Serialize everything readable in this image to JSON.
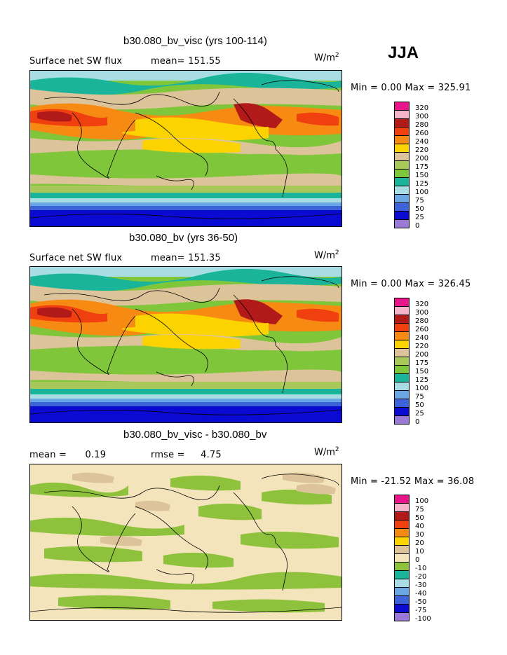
{
  "season": "JJA",
  "panels": [
    {
      "title": "b30.080_bv_visc (yrs 100-114)",
      "left_label": "Surface net SW flux",
      "stat_label": "mean=",
      "stat_value": "151.55",
      "extra_label": "",
      "extra_value": "",
      "unit_base": "W/m",
      "unit_exp": "2",
      "minmax": "Min =    0.00 Max = 325.91",
      "contour_levels": [
        "320",
        "300",
        "280",
        "260",
        "240",
        "220",
        "200",
        "175",
        "150",
        "125",
        "100",
        "75",
        "50",
        "25",
        "0"
      ],
      "colors": [
        "#e8158c",
        "#f6b4c8",
        "#b21a1a",
        "#f04010",
        "#f78a12",
        "#fbd300",
        "#dcc39a",
        "#a8c85a",
        "#7fc63b",
        "#1ab49a",
        "#a9dde6",
        "#6aa6e4",
        "#3c64d8",
        "#0a0ad2",
        "#9a7ad6"
      ]
    },
    {
      "title": "b30.080_bv (yrs 36-50)",
      "left_label": "Surface net SW flux",
      "stat_label": "mean=",
      "stat_value": "151.35",
      "extra_label": "",
      "extra_value": "",
      "unit_base": "W/m",
      "unit_exp": "2",
      "minmax": "Min =    0.00 Max = 326.45",
      "contour_levels": [
        "320",
        "300",
        "280",
        "260",
        "240",
        "220",
        "200",
        "175",
        "150",
        "125",
        "100",
        "75",
        "50",
        "25",
        "0"
      ],
      "colors": [
        "#e8158c",
        "#f6b4c8",
        "#b21a1a",
        "#f04010",
        "#f78a12",
        "#fbd300",
        "#dcc39a",
        "#a8c85a",
        "#7fc63b",
        "#1ab49a",
        "#a9dde6",
        "#6aa6e4",
        "#3c64d8",
        "#0a0ad2",
        "#9a7ad6"
      ]
    },
    {
      "title": "b30.080_bv_visc - b30.080_bv",
      "left_label": "mean =",
      "stat_label": "",
      "stat_value": "0.19",
      "extra_label": "rmse =",
      "extra_value": "4.75",
      "unit_base": "W/m",
      "unit_exp": "2",
      "minmax": "Min = -21.52 Max =  36.08",
      "contour_levels": [
        "100",
        "75",
        "50",
        "40",
        "30",
        "20",
        "10",
        "0",
        "-10",
        "-20",
        "-30",
        "-40",
        "-50",
        "-75",
        "-100"
      ],
      "colors": [
        "#e8158c",
        "#f6b4c8",
        "#b21a1a",
        "#f04010",
        "#f78a12",
        "#fbd300",
        "#dcc39a",
        "#f3e4bb",
        "#8fc23c",
        "#1ab49a",
        "#a9dde6",
        "#6aa6e4",
        "#3c64d8",
        "#0a0ad2",
        "#9a7ad6"
      ]
    }
  ],
  "chart_data": [
    {
      "type": "heatmap",
      "title": "b30.080_bv_visc (yrs 100-114)",
      "variable": "Surface net SW flux",
      "units": "W/m2",
      "mean": 151.55,
      "min": 0.0,
      "max": 325.91,
      "levels": [
        0,
        25,
        50,
        75,
        100,
        125,
        150,
        175,
        200,
        220,
        240,
        260,
        280,
        300,
        320
      ]
    },
    {
      "type": "heatmap",
      "title": "b30.080_bv (yrs 36-50)",
      "variable": "Surface net SW flux",
      "units": "W/m2",
      "mean": 151.35,
      "min": 0.0,
      "max": 326.45,
      "levels": [
        0,
        25,
        50,
        75,
        100,
        125,
        150,
        175,
        200,
        220,
        240,
        260,
        280,
        300,
        320
      ]
    },
    {
      "type": "heatmap",
      "title": "b30.080_bv_visc - b30.080_bv",
      "units": "W/m2",
      "mean": 0.19,
      "rmse": 4.75,
      "min": -21.52,
      "max": 36.08,
      "levels": [
        -100,
        -75,
        -50,
        -40,
        -30,
        -20,
        -10,
        0,
        10,
        20,
        30,
        40,
        50,
        75,
        100
      ]
    }
  ]
}
